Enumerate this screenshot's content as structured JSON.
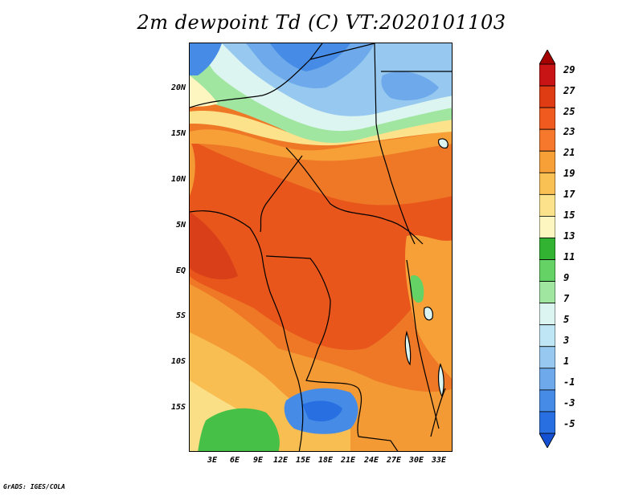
{
  "title": "2m dewpoint Td (C) VT:2020101103",
  "footer": "GrADS: IGES/COLA",
  "map": {
    "lat_labels": [
      "20N",
      "15N",
      "10N",
      "5N",
      "EQ",
      "5S",
      "10S",
      "15S"
    ],
    "lon_labels": [
      "3E",
      "6E",
      "9E",
      "12E",
      "15E",
      "18E",
      "21E",
      "24E",
      "27E",
      "30E",
      "33E"
    ]
  },
  "colorbar": {
    "labels": [
      "29",
      "27",
      "25",
      "23",
      "21",
      "19",
      "17",
      "15",
      "13",
      "11",
      "9",
      "7",
      "5",
      "3",
      "1",
      "-1",
      "-3",
      "-5"
    ],
    "colors": [
      "#a50000",
      "#c81414",
      "#e03c14",
      "#f05a1e",
      "#f5782d",
      "#f7a037",
      "#f9c053",
      "#fce28a",
      "#fdf6c0",
      "#32b432",
      "#64d264",
      "#a0e6a0",
      "#dcf5f0",
      "#bee6f5",
      "#96c8f0",
      "#6eaaeb",
      "#468ce6",
      "#2870e1",
      "#1450d2"
    ]
  }
}
